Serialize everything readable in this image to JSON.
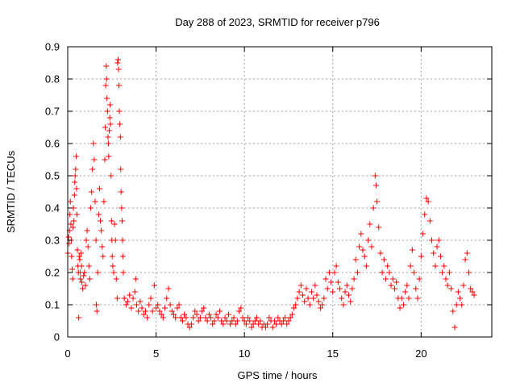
{
  "chart_data": {
    "type": "scatter",
    "title": "Day 288 of 2023, SRMTID for receiver p796",
    "xlabel": "GPS time / hours",
    "ylabel": "SRMTID / TECUs",
    "xlim": [
      0,
      24
    ],
    "ylim": [
      0,
      0.9
    ],
    "x_ticks": [
      "0",
      "5",
      "10",
      "15",
      "20"
    ],
    "y_ticks": [
      "0",
      "0.1",
      "0.2",
      "0.3",
      "0.4",
      "0.5",
      "0.6",
      "0.7",
      "0.8",
      "0.9"
    ],
    "grid": true,
    "marker": "+",
    "series_color": "#ff0000",
    "series": [
      {
        "name": "SRMTID",
        "points": [
          [
            0.0,
            0.26
          ],
          [
            0.05,
            0.31
          ],
          [
            0.08,
            0.29
          ],
          [
            0.1,
            0.33
          ],
          [
            0.12,
            0.38
          ],
          [
            0.15,
            0.42
          ],
          [
            0.18,
            0.35
          ],
          [
            0.2,
            0.3
          ],
          [
            0.22,
            0.25
          ],
          [
            0.25,
            0.21
          ],
          [
            0.28,
            0.18
          ],
          [
            0.3,
            0.34
          ],
          [
            0.32,
            0.4
          ],
          [
            0.35,
            0.36
          ],
          [
            0.38,
            0.44
          ],
          [
            0.4,
            0.48
          ],
          [
            0.42,
            0.5
          ],
          [
            0.45,
            0.52
          ],
          [
            0.48,
            0.56
          ],
          [
            0.5,
            0.46
          ],
          [
            0.52,
            0.38
          ],
          [
            0.55,
            0.27
          ],
          [
            0.58,
            0.22
          ],
          [
            0.6,
            0.2
          ],
          [
            0.62,
            0.06
          ],
          [
            0.65,
            0.25
          ],
          [
            0.68,
            0.24
          ],
          [
            0.7,
            0.2
          ],
          [
            0.72,
            0.18
          ],
          [
            0.75,
            0.26
          ],
          [
            0.78,
            0.22
          ],
          [
            0.8,
            0.17
          ],
          [
            0.85,
            0.15
          ],
          [
            0.9,
            0.19
          ],
          [
            0.95,
            0.2
          ],
          [
            1.0,
            0.16
          ],
          [
            1.05,
            0.3
          ],
          [
            1.1,
            0.33
          ],
          [
            1.15,
            0.28
          ],
          [
            1.2,
            0.22
          ],
          [
            1.25,
            0.18
          ],
          [
            1.3,
            0.4
          ],
          [
            1.35,
            0.45
          ],
          [
            1.4,
            0.52
          ],
          [
            1.45,
            0.6
          ],
          [
            1.5,
            0.55
          ],
          [
            1.55,
            0.42
          ],
          [
            1.6,
            0.3
          ],
          [
            1.62,
            0.1
          ],
          [
            1.65,
            0.08
          ],
          [
            1.7,
            0.2
          ],
          [
            1.75,
            0.38
          ],
          [
            1.8,
            0.46
          ],
          [
            1.85,
            0.36
          ],
          [
            1.9,
            0.33
          ],
          [
            1.95,
            0.28
          ],
          [
            2.0,
            0.25
          ],
          [
            2.05,
            0.42
          ],
          [
            2.1,
            0.55
          ],
          [
            2.12,
            0.65
          ],
          [
            2.15,
            0.78
          ],
          [
            2.18,
            0.84
          ],
          [
            2.2,
            0.8
          ],
          [
            2.22,
            0.74
          ],
          [
            2.25,
            0.7
          ],
          [
            2.28,
            0.62
          ],
          [
            2.3,
            0.6
          ],
          [
            2.32,
            0.56
          ],
          [
            2.35,
            0.64
          ],
          [
            2.38,
            0.68
          ],
          [
            2.4,
            0.72
          ],
          [
            2.42,
            0.66
          ],
          [
            2.45,
            0.5
          ],
          [
            2.48,
            0.36
          ],
          [
            2.5,
            0.3
          ],
          [
            2.52,
            0.25
          ],
          [
            2.55,
            0.22
          ],
          [
            2.6,
            0.2
          ],
          [
            2.65,
            0.35
          ],
          [
            2.7,
            0.3
          ],
          [
            2.75,
            0.18
          ],
          [
            2.8,
            0.12
          ],
          [
            2.82,
            0.85
          ],
          [
            2.85,
            0.86
          ],
          [
            2.88,
            0.83
          ],
          [
            2.9,
            0.78
          ],
          [
            2.92,
            0.7
          ],
          [
            2.95,
            0.66
          ],
          [
            2.98,
            0.62
          ],
          [
            3.0,
            0.52
          ],
          [
            3.02,
            0.45
          ],
          [
            3.05,
            0.4
          ],
          [
            3.08,
            0.36
          ],
          [
            3.1,
            0.3
          ],
          [
            3.12,
            0.25
          ],
          [
            3.15,
            0.2
          ],
          [
            3.2,
            0.12
          ],
          [
            3.3,
            0.1
          ],
          [
            3.4,
            0.11
          ],
          [
            3.5,
            0.13
          ],
          [
            3.6,
            0.09
          ],
          [
            3.7,
            0.12
          ],
          [
            3.8,
            0.14
          ],
          [
            3.85,
            0.18
          ],
          [
            3.9,
            0.1
          ],
          [
            4.0,
            0.08
          ],
          [
            4.1,
            0.11
          ],
          [
            4.2,
            0.09
          ],
          [
            4.3,
            0.07
          ],
          [
            4.4,
            0.08
          ],
          [
            4.5,
            0.06
          ],
          [
            4.6,
            0.1
          ],
          [
            4.7,
            0.12
          ],
          [
            4.8,
            0.08
          ],
          [
            4.9,
            0.16
          ],
          [
            5.0,
            0.09
          ],
          [
            5.1,
            0.1
          ],
          [
            5.2,
            0.08
          ],
          [
            5.3,
            0.07
          ],
          [
            5.4,
            0.06
          ],
          [
            5.5,
            0.09
          ],
          [
            5.6,
            0.12
          ],
          [
            5.7,
            0.15
          ],
          [
            5.8,
            0.1
          ],
          [
            5.9,
            0.08
          ],
          [
            6.0,
            0.07
          ],
          [
            6.1,
            0.06
          ],
          [
            6.2,
            0.09
          ],
          [
            6.3,
            0.1
          ],
          [
            6.4,
            0.06
          ],
          [
            6.5,
            0.05
          ],
          [
            6.6,
            0.07
          ],
          [
            6.7,
            0.06
          ],
          [
            6.8,
            0.04
          ],
          [
            6.9,
            0.03
          ],
          [
            7.0,
            0.04
          ],
          [
            7.1,
            0.06
          ],
          [
            7.2,
            0.08
          ],
          [
            7.3,
            0.07
          ],
          [
            7.4,
            0.05
          ],
          [
            7.5,
            0.06
          ],
          [
            7.6,
            0.08
          ],
          [
            7.7,
            0.09
          ],
          [
            7.8,
            0.06
          ],
          [
            7.9,
            0.05
          ],
          [
            8.0,
            0.07
          ],
          [
            8.1,
            0.06
          ],
          [
            8.2,
            0.04
          ],
          [
            8.3,
            0.05
          ],
          [
            8.4,
            0.07
          ],
          [
            8.5,
            0.06
          ],
          [
            8.6,
            0.08
          ],
          [
            8.7,
            0.05
          ],
          [
            8.8,
            0.04
          ],
          [
            8.9,
            0.06
          ],
          [
            9.0,
            0.05
          ],
          [
            9.1,
            0.07
          ],
          [
            9.2,
            0.04
          ],
          [
            9.3,
            0.05
          ],
          [
            9.4,
            0.06
          ],
          [
            9.5,
            0.04
          ],
          [
            9.6,
            0.05
          ],
          [
            9.7,
            0.08
          ],
          [
            9.8,
            0.09
          ],
          [
            9.9,
            0.06
          ],
          [
            10.0,
            0.05
          ],
          [
            10.1,
            0.04
          ],
          [
            10.2,
            0.06
          ],
          [
            10.3,
            0.05
          ],
          [
            10.4,
            0.03
          ],
          [
            10.5,
            0.04
          ],
          [
            10.6,
            0.05
          ],
          [
            10.7,
            0.06
          ],
          [
            10.8,
            0.04
          ],
          [
            10.9,
            0.05
          ],
          [
            11.0,
            0.03
          ],
          [
            11.1,
            0.04
          ],
          [
            11.2,
            0.03
          ],
          [
            11.3,
            0.04
          ],
          [
            11.4,
            0.06
          ],
          [
            11.5,
            0.05
          ],
          [
            11.6,
            0.03
          ],
          [
            11.7,
            0.05
          ],
          [
            11.8,
            0.04
          ],
          [
            11.9,
            0.06
          ],
          [
            12.0,
            0.05
          ],
          [
            12.1,
            0.04
          ],
          [
            12.2,
            0.05
          ],
          [
            12.3,
            0.06
          ],
          [
            12.4,
            0.04
          ],
          [
            12.5,
            0.05
          ],
          [
            12.6,
            0.06
          ],
          [
            12.7,
            0.07
          ],
          [
            12.8,
            0.09
          ],
          [
            12.9,
            0.1
          ],
          [
            13.0,
            0.12
          ],
          [
            13.1,
            0.14
          ],
          [
            13.2,
            0.16
          ],
          [
            13.3,
            0.13
          ],
          [
            13.4,
            0.11
          ],
          [
            13.5,
            0.15
          ],
          [
            13.6,
            0.12
          ],
          [
            13.7,
            0.1
          ],
          [
            13.8,
            0.14
          ],
          [
            13.9,
            0.12
          ],
          [
            14.0,
            0.16
          ],
          [
            14.1,
            0.13
          ],
          [
            14.2,
            0.11
          ],
          [
            14.3,
            0.09
          ],
          [
            14.4,
            0.1
          ],
          [
            14.5,
            0.12
          ],
          [
            14.6,
            0.18
          ],
          [
            14.7,
            0.15
          ],
          [
            14.8,
            0.2
          ],
          [
            14.9,
            0.17
          ],
          [
            15.0,
            0.14
          ],
          [
            15.1,
            0.2
          ],
          [
            15.2,
            0.22
          ],
          [
            15.3,
            0.17
          ],
          [
            15.4,
            0.15
          ],
          [
            15.5,
            0.12
          ],
          [
            15.6,
            0.1
          ],
          [
            15.7,
            0.14
          ],
          [
            15.8,
            0.16
          ],
          [
            15.9,
            0.13
          ],
          [
            16.0,
            0.11
          ],
          [
            16.1,
            0.15
          ],
          [
            16.2,
            0.18
          ],
          [
            16.3,
            0.24
          ],
          [
            16.4,
            0.2
          ],
          [
            16.5,
            0.28
          ],
          [
            16.6,
            0.32
          ],
          [
            16.7,
            0.27
          ],
          [
            16.8,
            0.25
          ],
          [
            16.9,
            0.22
          ],
          [
            17.0,
            0.3
          ],
          [
            17.1,
            0.35
          ],
          [
            17.2,
            0.28
          ],
          [
            17.3,
            0.4
          ],
          [
            17.4,
            0.5
          ],
          [
            17.45,
            0.47
          ],
          [
            17.5,
            0.42
          ],
          [
            17.6,
            0.34
          ],
          [
            17.7,
            0.26
          ],
          [
            17.8,
            0.2
          ],
          [
            17.9,
            0.24
          ],
          [
            18.0,
            0.18
          ],
          [
            18.1,
            0.22
          ],
          [
            18.2,
            0.2
          ],
          [
            18.3,
            0.16
          ],
          [
            18.4,
            0.18
          ],
          [
            18.5,
            0.15
          ],
          [
            18.6,
            0.17
          ],
          [
            18.7,
            0.12
          ],
          [
            18.8,
            0.09
          ],
          [
            18.9,
            0.12
          ],
          [
            19.0,
            0.1
          ],
          [
            19.1,
            0.14
          ],
          [
            19.2,
            0.16
          ],
          [
            19.3,
            0.12
          ],
          [
            19.4,
            0.22
          ],
          [
            19.5,
            0.27
          ],
          [
            19.6,
            0.2
          ],
          [
            19.7,
            0.15
          ],
          [
            19.8,
            0.12
          ],
          [
            19.9,
            0.18
          ],
          [
            20.0,
            0.25
          ],
          [
            20.1,
            0.32
          ],
          [
            20.2,
            0.38
          ],
          [
            20.3,
            0.43
          ],
          [
            20.4,
            0.42
          ],
          [
            20.5,
            0.36
          ],
          [
            20.6,
            0.3
          ],
          [
            20.7,
            0.26
          ],
          [
            20.8,
            0.22
          ],
          [
            20.9,
            0.28
          ],
          [
            21.0,
            0.3
          ],
          [
            21.1,
            0.25
          ],
          [
            21.2,
            0.2
          ],
          [
            21.3,
            0.22
          ],
          [
            21.4,
            0.18
          ],
          [
            21.5,
            0.16
          ],
          [
            21.6,
            0.2
          ],
          [
            21.7,
            0.15
          ],
          [
            21.8,
            0.08
          ],
          [
            21.9,
            0.03
          ],
          [
            22.0,
            0.1
          ],
          [
            22.1,
            0.14
          ],
          [
            22.2,
            0.12
          ],
          [
            22.3,
            0.1
          ],
          [
            22.4,
            0.16
          ],
          [
            22.5,
            0.24
          ],
          [
            22.6,
            0.26
          ],
          [
            22.7,
            0.2
          ],
          [
            22.8,
            0.15
          ],
          [
            22.9,
            0.14
          ],
          [
            23.0,
            0.13
          ]
        ]
      }
    ]
  }
}
